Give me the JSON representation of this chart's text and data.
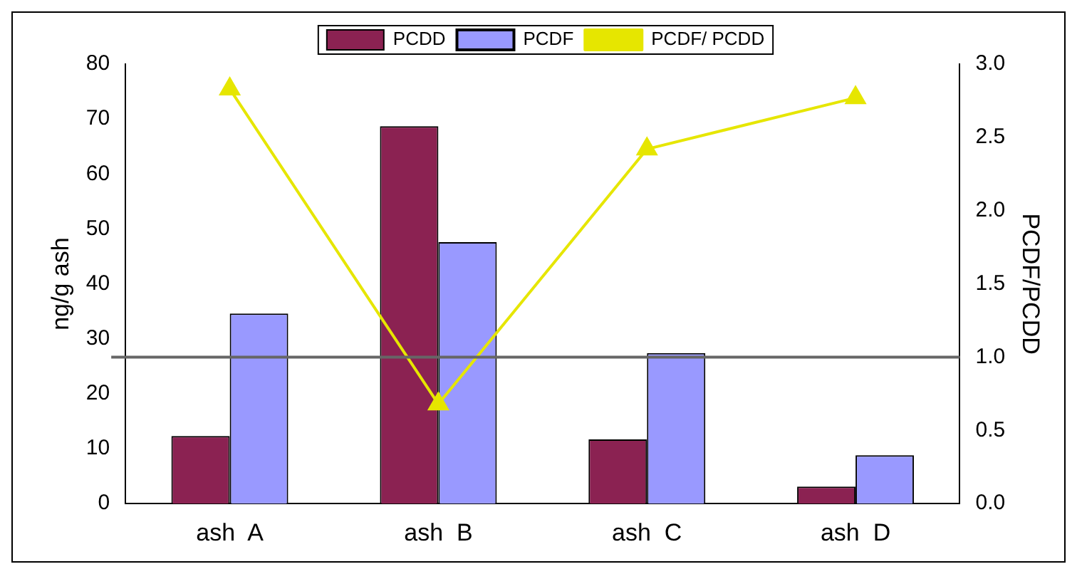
{
  "chart_data": {
    "type": "bar",
    "ylabel": "ng/g ash",
    "y2label": "PCDF/PCDD",
    "categories": [
      "ash  A",
      "ash  B",
      "ash  C",
      "ash  D"
    ],
    "series": [
      {
        "name": "PCDD",
        "color": "#8b2252",
        "values": [
          12.3,
          68.7,
          11.7,
          3.1
        ]
      },
      {
        "name": "PCDF",
        "color": "#9999ff",
        "values": [
          34.6,
          47.6,
          27.4,
          8.8
        ]
      },
      {
        "name": "PCDF/ PCDD",
        "type": "line",
        "axis": "y2",
        "color": "#e6e600",
        "marker": "triangle",
        "values": [
          2.83,
          0.68,
          2.42,
          2.77
        ]
      }
    ],
    "ylim": [
      0,
      80
    ],
    "yticks": [
      0,
      10,
      20,
      30,
      40,
      50,
      60,
      70,
      80
    ],
    "y2lim": [
      0,
      3
    ],
    "y2ticks": [
      {
        "value": 0,
        "label": "0.0"
      },
      {
        "value": 0.5,
        "label": "0.5"
      },
      {
        "value": 1,
        "label": "1.0"
      },
      {
        "value": 1.5,
        "label": "1.5"
      },
      {
        "value": 2,
        "label": "2.0"
      },
      {
        "value": 2.5,
        "label": "2.5"
      },
      {
        "value": 3,
        "label": "3.0"
      }
    ],
    "ref_lines": [
      {
        "axis": "y2",
        "value": 1,
        "color": "#666666"
      }
    ],
    "grid": false,
    "legend": "top"
  }
}
